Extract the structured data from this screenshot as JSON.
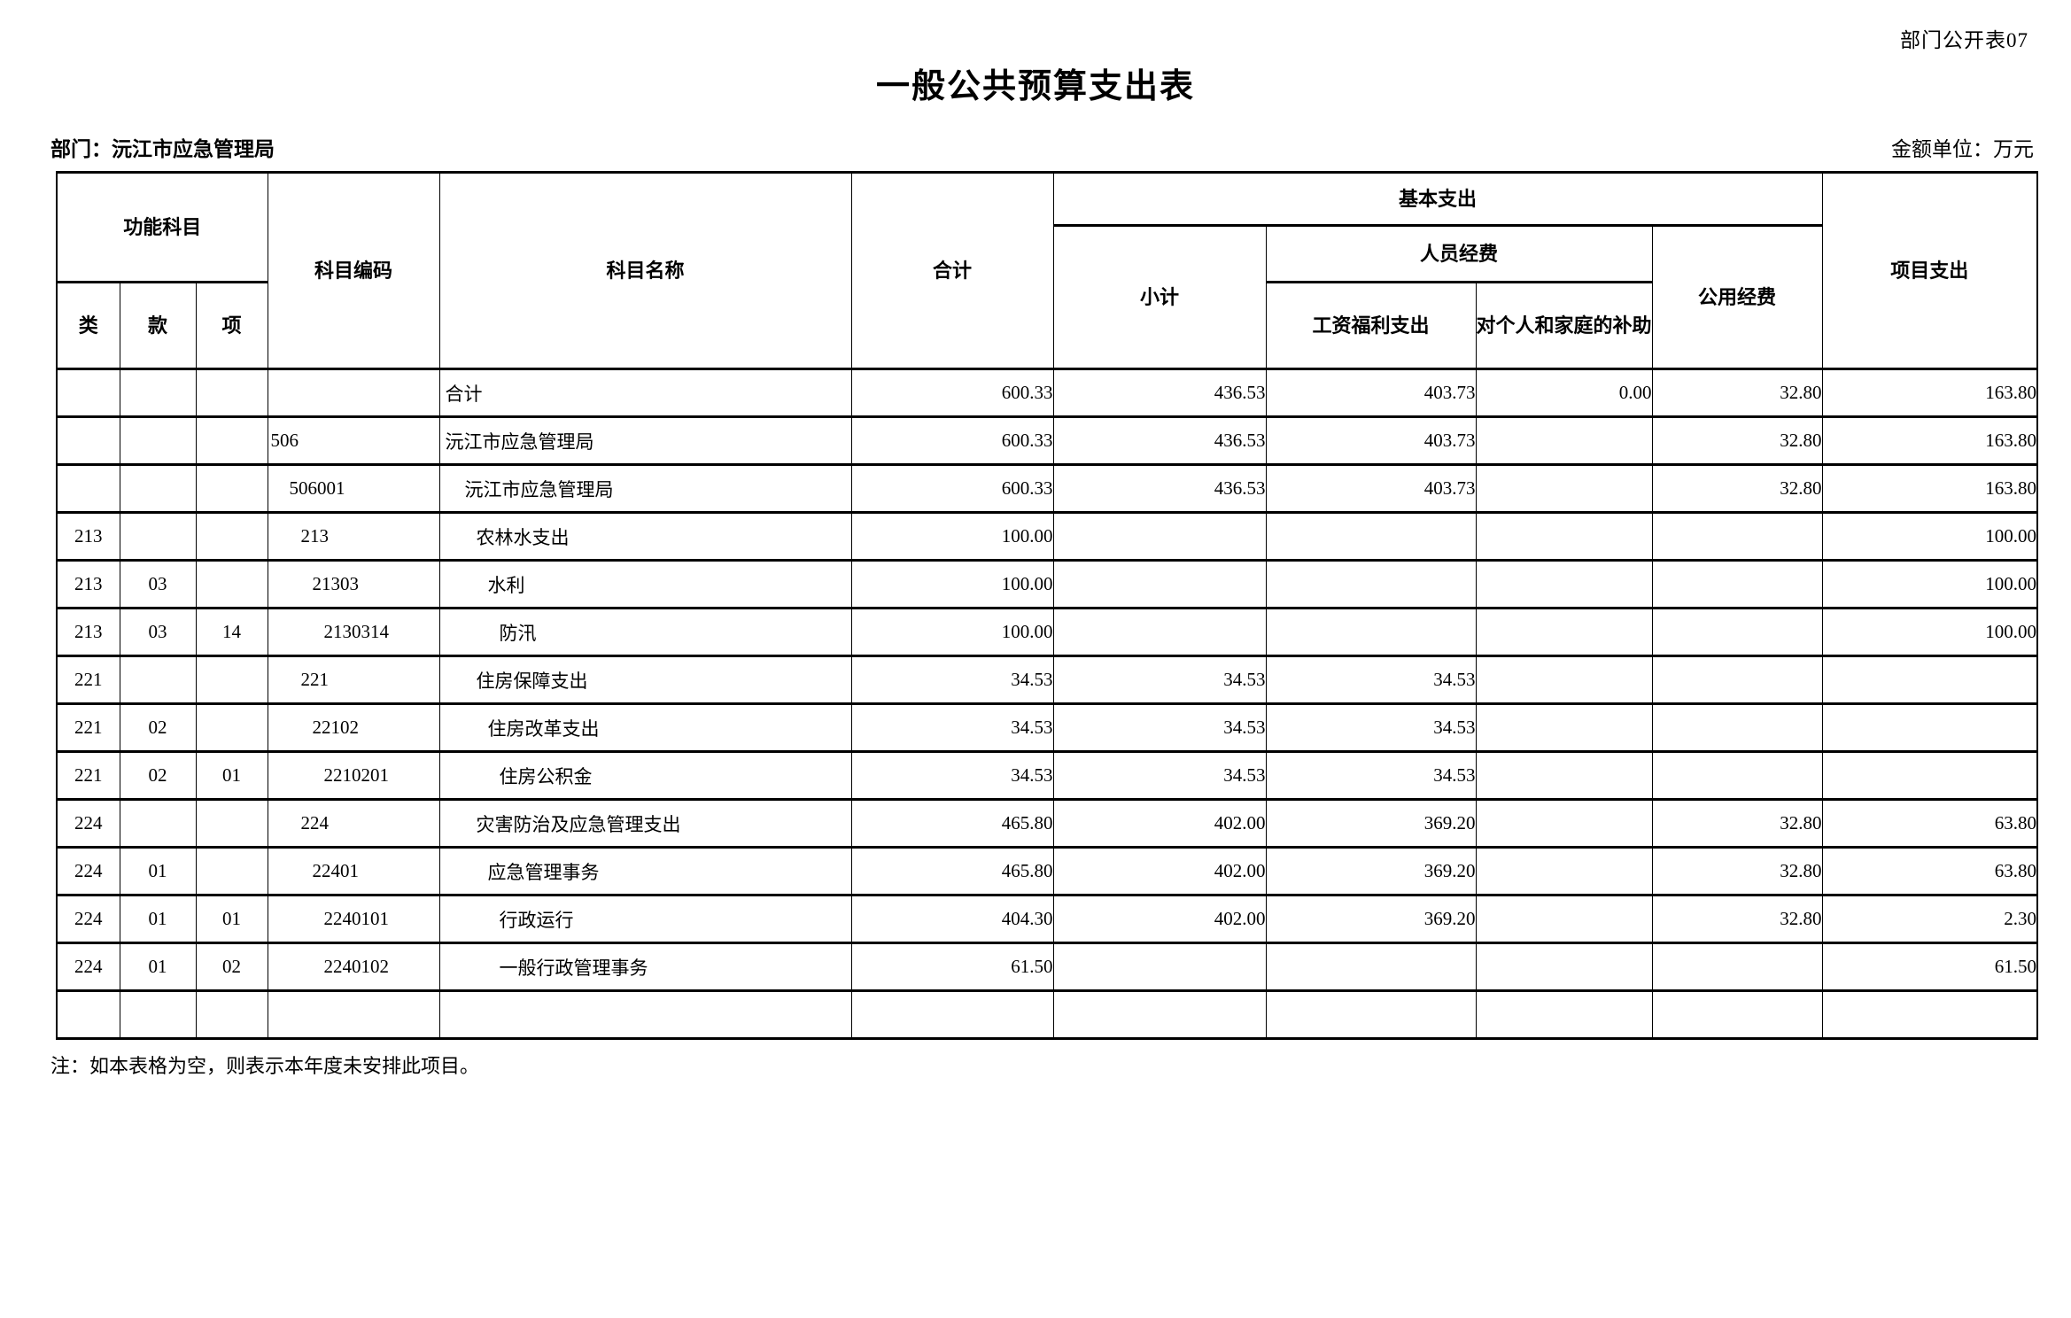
{
  "page": {
    "corner_label": "部门公开表07",
    "title": "一般公共预算支出表",
    "department_label": "部门：沅江市应急管理局",
    "unit_label": "金额单位：万元",
    "note": "注：如本表格为空，则表示本年度未安排此项目。"
  },
  "table": {
    "headers": {
      "func_group": "功能科目",
      "lei": "类",
      "kuan": "款",
      "xiang": "项",
      "code": "科目编码",
      "name": "科目名称",
      "total": "合计",
      "basic_group": "基本支出",
      "subtotal": "小计",
      "personnel_group": "人员经费",
      "wage": "工资福利支出",
      "personal": "对个人和家庭的补助",
      "public": "公用经费",
      "project": "项目支出"
    },
    "rows": [
      {
        "lei": "",
        "kuan": "",
        "xiang": "",
        "code": "",
        "name": "合计",
        "level": 0,
        "total": "600.33",
        "subtotal": "436.53",
        "wage": "403.73",
        "personal": "0.00",
        "public": "32.80",
        "project": "163.80"
      },
      {
        "lei": "",
        "kuan": "",
        "xiang": "",
        "code": "506",
        "name": "沅江市应急管理局",
        "level": 0,
        "total": "600.33",
        "subtotal": "436.53",
        "wage": "403.73",
        "personal": "",
        "public": "32.80",
        "project": "163.80"
      },
      {
        "lei": "",
        "kuan": "",
        "xiang": "",
        "code": "506001",
        "name": "沅江市应急管理局",
        "level": 1,
        "total": "600.33",
        "subtotal": "436.53",
        "wage": "403.73",
        "personal": "",
        "public": "32.80",
        "project": "163.80"
      },
      {
        "lei": "213",
        "kuan": "",
        "xiang": "",
        "code": "213",
        "name": "农林水支出",
        "level": 2,
        "total": "100.00",
        "subtotal": "",
        "wage": "",
        "personal": "",
        "public": "",
        "project": "100.00"
      },
      {
        "lei": "213",
        "kuan": "03",
        "xiang": "",
        "code": "21303",
        "name": "水利",
        "level": 3,
        "total": "100.00",
        "subtotal": "",
        "wage": "",
        "personal": "",
        "public": "",
        "project": "100.00"
      },
      {
        "lei": "213",
        "kuan": "03",
        "xiang": "14",
        "code": "2130314",
        "name": "防汛",
        "level": 4,
        "total": "100.00",
        "subtotal": "",
        "wage": "",
        "personal": "",
        "public": "",
        "project": "100.00"
      },
      {
        "lei": "221",
        "kuan": "",
        "xiang": "",
        "code": "221",
        "name": "住房保障支出",
        "level": 2,
        "total": "34.53",
        "subtotal": "34.53",
        "wage": "34.53",
        "personal": "",
        "public": "",
        "project": ""
      },
      {
        "lei": "221",
        "kuan": "02",
        "xiang": "",
        "code": "22102",
        "name": "住房改革支出",
        "level": 3,
        "total": "34.53",
        "subtotal": "34.53",
        "wage": "34.53",
        "personal": "",
        "public": "",
        "project": ""
      },
      {
        "lei": "221",
        "kuan": "02",
        "xiang": "01",
        "code": "2210201",
        "name": "住房公积金",
        "level": 4,
        "total": "34.53",
        "subtotal": "34.53",
        "wage": "34.53",
        "personal": "",
        "public": "",
        "project": ""
      },
      {
        "lei": "224",
        "kuan": "",
        "xiang": "",
        "code": "224",
        "name": "灾害防治及应急管理支出",
        "level": 2,
        "total": "465.80",
        "subtotal": "402.00",
        "wage": "369.20",
        "personal": "",
        "public": "32.80",
        "project": "63.80"
      },
      {
        "lei": "224",
        "kuan": "01",
        "xiang": "",
        "code": "22401",
        "name": "应急管理事务",
        "level": 3,
        "total": "465.80",
        "subtotal": "402.00",
        "wage": "369.20",
        "personal": "",
        "public": "32.80",
        "project": "63.80"
      },
      {
        "lei": "224",
        "kuan": "01",
        "xiang": "01",
        "code": "2240101",
        "name": "行政运行",
        "level": 4,
        "total": "404.30",
        "subtotal": "402.00",
        "wage": "369.20",
        "personal": "",
        "public": "32.80",
        "project": "2.30"
      },
      {
        "lei": "224",
        "kuan": "01",
        "xiang": "02",
        "code": "2240102",
        "name": "一般行政管理事务",
        "level": 4,
        "total": "61.50",
        "subtotal": "",
        "wage": "",
        "personal": "",
        "public": "",
        "project": "61.50"
      },
      {
        "lei": "",
        "kuan": "",
        "xiang": "",
        "code": "",
        "name": "",
        "total": "",
        "subtotal": "",
        "wage": "",
        "personal": "",
        "public": "",
        "project": ""
      }
    ]
  }
}
